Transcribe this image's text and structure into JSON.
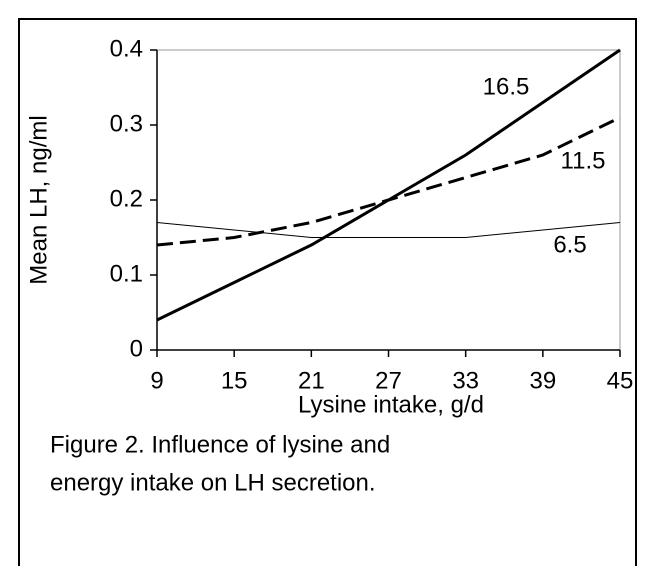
{
  "chart_data": {
    "type": "line",
    "xlabel": "Lysine intake, g/d",
    "ylabel": "Mean LH, ng/ml",
    "caption": [
      "Figure 2. Influence of lysine and",
      "energy intake on LH secretion."
    ],
    "x": [
      9,
      15,
      21,
      27,
      33,
      39,
      45
    ],
    "xlim": [
      9,
      45
    ],
    "xticks": [
      9,
      15,
      21,
      27,
      33,
      39,
      45
    ],
    "ylim": [
      0,
      0.4
    ],
    "yticks": [
      0,
      0.1,
      0.2,
      0.3,
      0.4
    ],
    "series": [
      {
        "name": "16.5",
        "color": "#000000",
        "style": "solid-thick",
        "values": [
          0.04,
          0.09,
          0.14,
          0.2,
          0.26,
          0.33,
          0.4
        ]
      },
      {
        "name": "11.5",
        "color": "#000000",
        "style": "dashed",
        "values": [
          0.14,
          0.15,
          0.17,
          0.2,
          0.23,
          0.26,
          0.31
        ]
      },
      {
        "name": "6.5",
        "color": "#000000",
        "style": "thin",
        "values": [
          0.17,
          0.16,
          0.15,
          0.15,
          0.15,
          0.16,
          0.17
        ]
      }
    ]
  }
}
